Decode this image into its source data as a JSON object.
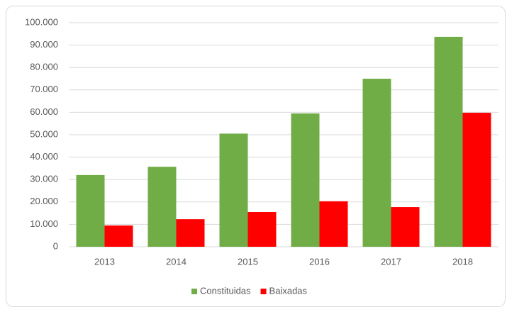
{
  "chart_data": {
    "type": "bar",
    "categories": [
      "2013",
      "2014",
      "2015",
      "2016",
      "2017",
      "2018"
    ],
    "series": [
      {
        "name": "Constituidas",
        "color": "#70ad47",
        "values": [
          32000,
          35700,
          50500,
          59500,
          75000,
          93700
        ]
      },
      {
        "name": "Baixadas",
        "color": "#ff0000",
        "values": [
          9500,
          12300,
          15500,
          20300,
          17700,
          59800
        ]
      }
    ],
    "ylim": [
      0,
      100000
    ],
    "yticks": [
      0,
      {
        "value": 10000,
        "label": "10.000"
      },
      {
        "value": 20000,
        "label": "20.000"
      },
      {
        "value": 30000,
        "label": "30.000"
      },
      {
        "value": 40000,
        "label": "40.000"
      },
      {
        "value": 50000,
        "label": "50.000"
      },
      {
        "value": 60000,
        "label": "60.000"
      },
      {
        "value": 70000,
        "label": "70.000"
      },
      {
        "value": 80000,
        "label": "80.000"
      },
      {
        "value": 90000,
        "label": "90.000"
      },
      {
        "value": 100000,
        "label": "100.000"
      }
    ],
    "grid": true,
    "legend": "bottom"
  }
}
